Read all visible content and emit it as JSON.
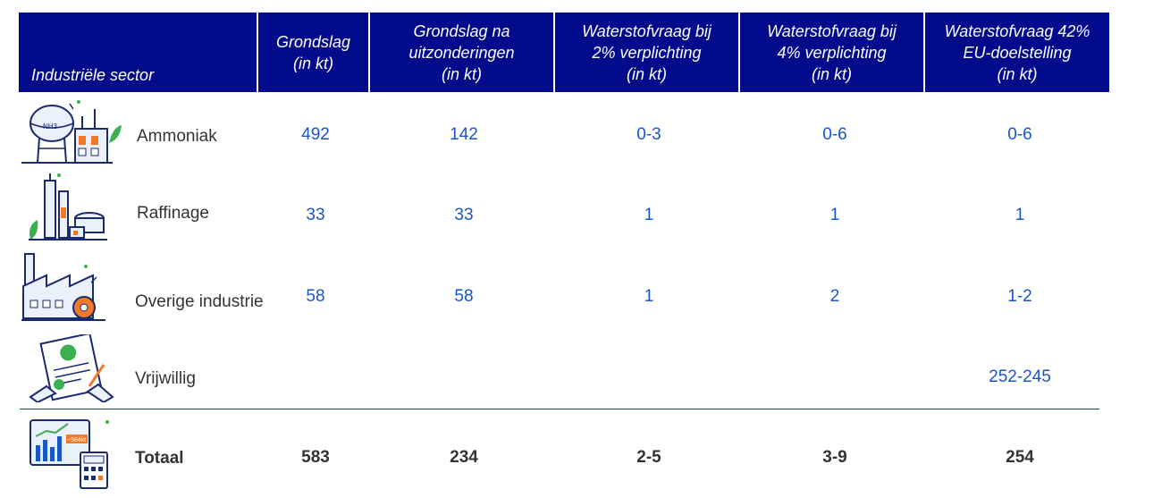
{
  "headers": [
    {
      "key": "sector",
      "text": "Industriële sector"
    },
    {
      "key": "grondslag",
      "text": "Grondslag\n(in kt)"
    },
    {
      "key": "na_uitz",
      "text": "Grondslag na\nuitzonderingen\n(in kt)"
    },
    {
      "key": "twee",
      "text": "Waterstofvraag bij\n2% verplichting\n(in kt)"
    },
    {
      "key": "vier",
      "text": "Waterstofvraag bij\n4% verplichting\n(in kt)"
    },
    {
      "key": "eu",
      "text": "Waterstofvraag 42%\nEU-doelstelling\n(in kt)"
    }
  ],
  "rows": [
    {
      "sector": "Ammoniak",
      "icon": "ammonia-plant-icon",
      "values": [
        "492",
        "142",
        "0-3",
        "0-6",
        "0-6"
      ]
    },
    {
      "sector": "Raffinage",
      "icon": "refinery-icon",
      "values": [
        "33",
        "33",
        "1",
        "1",
        "1"
      ]
    },
    {
      "sector": "Overige industrie",
      "icon": "factory-icon",
      "values": [
        "58",
        "58",
        "1",
        "2",
        "1-2"
      ]
    },
    {
      "sector": "Vrijwillig",
      "icon": "certificate-signing-icon",
      "values": [
        "",
        "",
        "",
        "",
        "252-245"
      ]
    }
  ],
  "total": {
    "label": "Totaal",
    "icon": "dashboard-calculator-icon",
    "values": [
      "583",
      "234",
      "2-5",
      "3-9",
      "254"
    ]
  },
  "dashboard_badge": "~584kt",
  "ammonia_label": "NH3",
  "colors": {
    "header_bg": "#010b8c",
    "value_blue": "#1a55c8",
    "text_dark": "#333333",
    "accent_green": "#3cb050",
    "accent_orange": "#f07a28"
  }
}
